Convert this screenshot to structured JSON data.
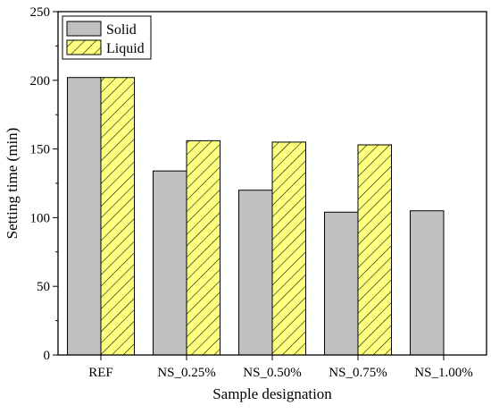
{
  "chart_data": {
    "type": "bar",
    "xlabel": "Sample designation",
    "ylabel": "Setting time (min)",
    "categories": [
      "REF",
      "NS_0.25%",
      "NS_0.50%",
      "NS_0.75%",
      "NS_1.00%"
    ],
    "series": [
      {
        "name": "Solid",
        "values": [
          202,
          134,
          120,
          104,
          105
        ],
        "color": "#c0c0c0",
        "pattern": "solid"
      },
      {
        "name": "Liquid",
        "values": [
          202,
          156,
          155,
          153,
          null
        ],
        "color": "#ffff80",
        "pattern": "diagonal-hatch"
      }
    ],
    "ylim": [
      0,
      250
    ],
    "yticks": [
      "0",
      "50",
      "100",
      "150",
      "200",
      "250"
    ],
    "ytick_values": [
      0,
      50,
      100,
      150,
      200,
      250
    ],
    "grid": false,
    "legend_position": "top-left"
  }
}
